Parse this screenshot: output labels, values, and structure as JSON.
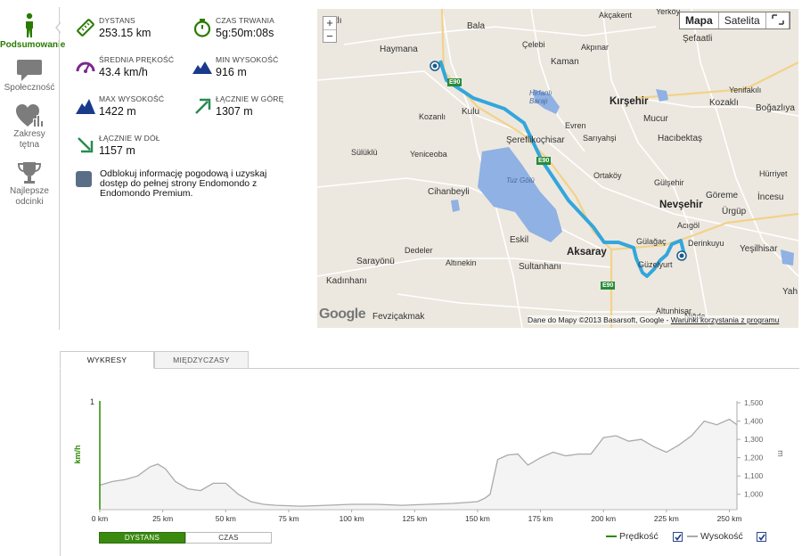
{
  "sidebar": {
    "items": [
      {
        "label": "Podsumowanie",
        "icon": "walker-icon",
        "active": true
      },
      {
        "label": "Społeczność",
        "icon": "speech-bubble-icon"
      },
      {
        "label": "Zakresy tętna",
        "icon": "heart-chart-icon"
      },
      {
        "label": "Najlepsze odcinki",
        "icon": "trophy-icon"
      }
    ]
  },
  "stats": {
    "distance": {
      "label": "DYSTANS",
      "value": "253.15 km"
    },
    "duration": {
      "label": "CZAS TRWANIA",
      "value": "5g:50m:08s"
    },
    "avg_speed": {
      "label": "ŚREDNIA PRĘKOŚĆ",
      "value": "43.4 km/h"
    },
    "min_alt": {
      "label": "MIN WYSOKOŚĆ",
      "value": "916 m"
    },
    "max_alt": {
      "label": "MAX WYSOKOŚĆ",
      "value": "1422 m"
    },
    "total_up": {
      "label": "ŁĄCZNIE W GÓRĘ",
      "value": "1307 m"
    },
    "total_down": {
      "label": "ŁĄCZNIE W DÓŁ",
      "value": "1157 m"
    }
  },
  "promo": {
    "text": "Odblokuj informację pogodową i uzyskaj dostęp do pełnej strony Endomondo z Endomondo Premium."
  },
  "map": {
    "zoom_in": "+",
    "zoom_out": "−",
    "type_map": "Mapa",
    "type_satellite": "Satelita",
    "attribution": "Dane do Mapy ©2013 Basarsoft, Google -",
    "terms_link": "Warunki korzystania z programu",
    "logo": "Google",
    "places": {
      "p1": "latlı",
      "p2": "Bala",
      "p3": "Akçakent",
      "p4": "Yerköy",
      "p5": "Haymana",
      "p6": "Çelebi",
      "p7": "Akpınar",
      "p8": "Şefaatli",
      "p9": "Kaman",
      "p10": "Hirfanlı Barajı",
      "p11": "Kırşehir",
      "p12": "Mucur",
      "p13": "Yenifakılı",
      "p14": "Kulu",
      "p15": "Kozaklı",
      "p16": "Kozanlı",
      "p17": "Boğazlıya",
      "p18": "Evren",
      "p19": "Şereflikoçhisar",
      "p20": "Sarıyahşi",
      "p21": "Hacıbektaş",
      "p22": "Sülüklü",
      "p23": "Yeniceoba",
      "p24": "Ortaköy",
      "p25": "Gülşehir",
      "p26": "Hürriyet",
      "p27": "Cihanbeyli",
      "p28": "Tuz Gölü",
      "p29": "Göreme",
      "p30": "İncesu",
      "p31": "Nevşehir",
      "p32": "Ürgüp",
      "p33": "Acıgöl",
      "p34": "Eskil",
      "p35": "Derinkuyu",
      "p36": "Gülağaç",
      "p37": "Yeşilhisar",
      "p38": "Sarayönü",
      "p39": "Dedeler",
      "p40": "Altınekin",
      "p41": "Sultanhanı",
      "p42": "Aksaray",
      "p43": "Güzelyurt",
      "p44": "Kadınhanı",
      "p45": "Yah",
      "p46": "Fevziçakmak",
      "p47": "Altunhisar",
      "p48": "Niğde"
    },
    "roads": {
      "r1": "E90",
      "r2": "E90",
      "r3": "E90"
    }
  },
  "chart_tabs": {
    "tab1": "WYKRESY",
    "tab2": "MIĘDZYCZASY"
  },
  "chart_toggle": {
    "distance": "DYSTANS",
    "time": "CZAS"
  },
  "legend": {
    "speed": "Prędkość",
    "altitude": "Wysokość",
    "speed_checked": true,
    "altitude_checked": true
  },
  "chart_data": {
    "type": "area",
    "xlabel": "",
    "ylabel_left": "km/h",
    "ylabel_right": "m",
    "x_ticks": [
      "0 km",
      "25 km",
      "50 km",
      "75 km",
      "100 km",
      "125 km",
      "150 km",
      "175 km",
      "200 km",
      "225 km",
      "250 km"
    ],
    "xlim": [
      0,
      253
    ],
    "y_left_ticks": [
      "1"
    ],
    "y_right_ticks": [
      "1,000",
      "1,100",
      "1,200",
      "1,300",
      "1,400",
      "1,500"
    ],
    "y_right_lim": [
      916,
      1510
    ],
    "series": [
      {
        "name": "Wysokość",
        "color": "#aaaaaa",
        "x": [
          0,
          5,
          10,
          15,
          20,
          23,
          26,
          30,
          35,
          40,
          45,
          50,
          55,
          60,
          65,
          70,
          80,
          90,
          100,
          110,
          120,
          130,
          140,
          150,
          153,
          155,
          158,
          162,
          166,
          170,
          175,
          180,
          185,
          190,
          195,
          200,
          205,
          210,
          215,
          220,
          225,
          230,
          235,
          240,
          245,
          250,
          253
        ],
        "y": [
          1050,
          1070,
          1080,
          1100,
          1150,
          1165,
          1140,
          1070,
          1030,
          1020,
          1060,
          1060,
          1000,
          960,
          945,
          940,
          935,
          940,
          945,
          945,
          940,
          945,
          950,
          960,
          980,
          1000,
          1190,
          1215,
          1220,
          1160,
          1200,
          1230,
          1210,
          1220,
          1220,
          1310,
          1320,
          1290,
          1300,
          1260,
          1230,
          1270,
          1320,
          1400,
          1380,
          1410,
          1380
        ]
      },
      {
        "name": "Prędkość",
        "color": "#2a8a00",
        "x": [],
        "y": []
      }
    ],
    "legend": "bottom-right",
    "grid": false
  }
}
